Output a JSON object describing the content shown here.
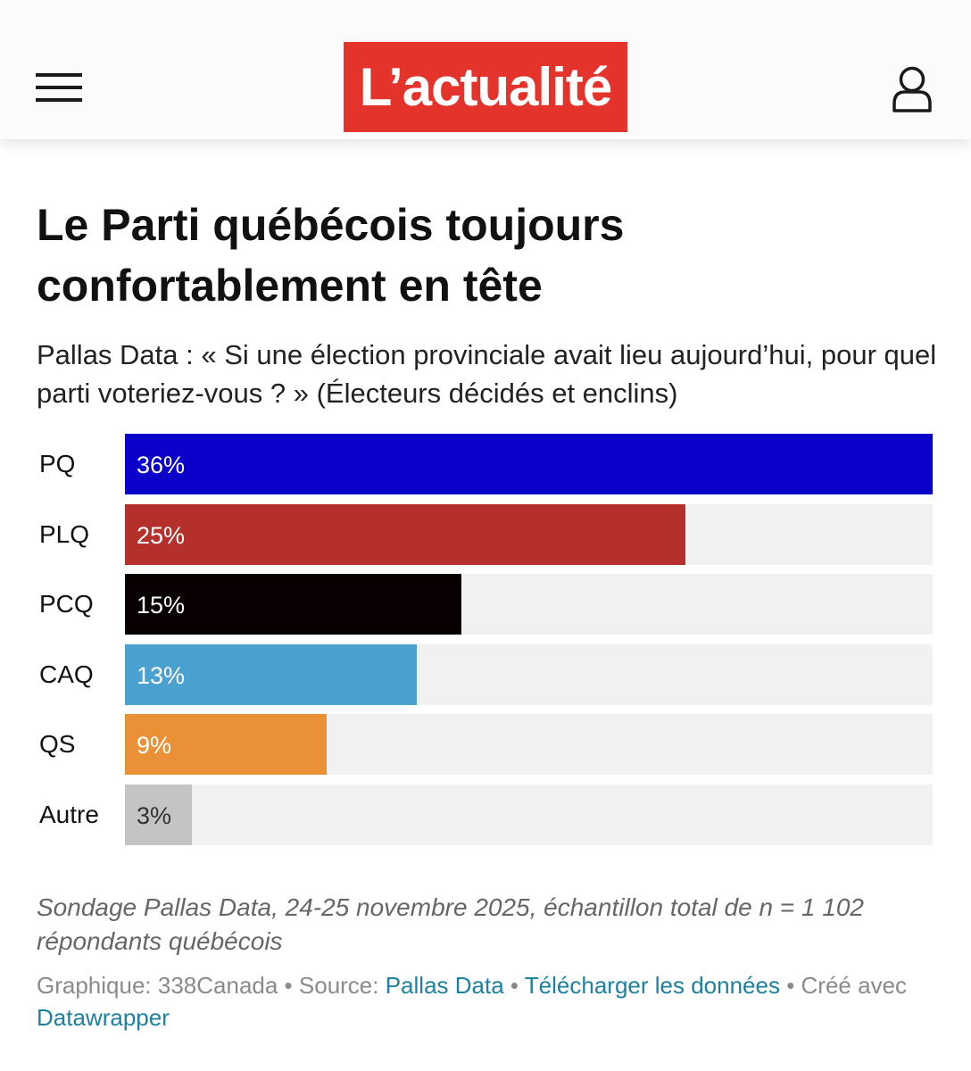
{
  "header": {
    "logo_text": "L’actualité",
    "brand_color": "#e3332b",
    "menu_icon": "hamburger-menu-icon",
    "user_icon": "user-account-icon"
  },
  "title": "Le Parti québécois toujours confortablement en tête",
  "subtitle": "Pallas Data : « Si une élection provinciale avait lieu aujourd’hui, pour quel parti voteriez-vous ? » (Électeurs décidés et enclins)",
  "chart_data": {
    "type": "bar",
    "orientation": "horizontal",
    "title": "Le Parti québécois toujours confortablement en tête",
    "categories": [
      "PQ",
      "PLQ",
      "PCQ",
      "CAQ",
      "QS",
      "Autre"
    ],
    "values": [
      36,
      25,
      15,
      13,
      9,
      3
    ],
    "value_labels": [
      "36%",
      "25%",
      "15%",
      "13%",
      "9%",
      "3%"
    ],
    "colors": [
      "#0b00c9",
      "#b5302a",
      "#080000",
      "#4aa0ce",
      "#ea9137",
      "#c4c4c4"
    ],
    "label_colors": [
      "#ffffff",
      "#ffffff",
      "#ffffff",
      "#ffffff",
      "#ffffff",
      "#333333"
    ],
    "xlim": [
      0,
      36
    ],
    "track_color": "#f1f1f1",
    "grid": false
  },
  "note": "Sondage Pallas Data, 24-25 novembre 2025, échantillon total de n = 1 102 répondants québécois",
  "footer": {
    "graphic_label": "Graphique: 338Canada",
    "sep": " • ",
    "source_label": "Source: ",
    "source_link": "Pallas Data",
    "download_link": "Télécharger les données",
    "created_label": "Créé avec",
    "datawrapper_link": "Datawrapper"
  }
}
